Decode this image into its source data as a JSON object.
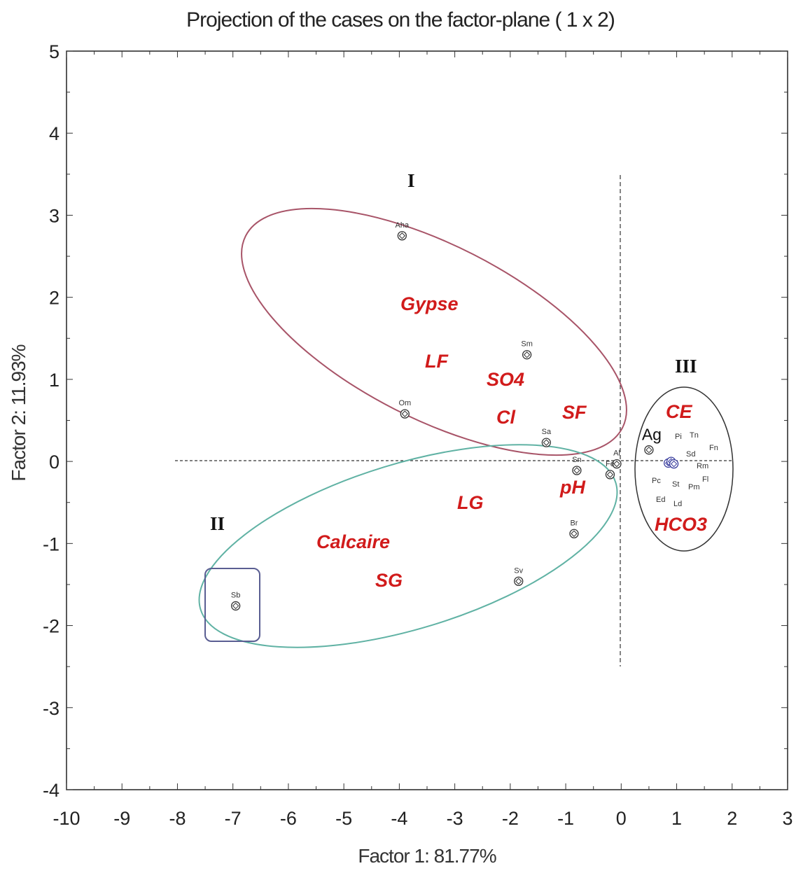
{
  "chart_data": {
    "type": "scatter",
    "title": "Projection of the cases on the factor-plane (  1 x   2)",
    "xlabel": "Factor 1: 81.77%",
    "ylabel": "Factor 2: 11.93%",
    "xlim": [
      -10,
      3
    ],
    "ylim": [
      -4,
      5
    ],
    "xticks": [
      "-10",
      "-9",
      "-8",
      "-7",
      "-6",
      "-5",
      "-4",
      "-3",
      "-2",
      "-1",
      "0",
      "1",
      "2",
      "3"
    ],
    "yticks": [
      "5",
      "4",
      "3",
      "2",
      "1",
      "0",
      "-1",
      "-2",
      "-3",
      "-4"
    ],
    "grid": false,
    "points": [
      {
        "label": "Aha",
        "x": -3.95,
        "y": 2.75
      },
      {
        "label": "Sm",
        "x": -1.7,
        "y": 1.3
      },
      {
        "label": "Om",
        "x": -3.9,
        "y": 0.58
      },
      {
        "label": "Sa",
        "x": -1.35,
        "y": 0.23
      },
      {
        "label": "Sn",
        "x": -0.8,
        "y": -0.11
      },
      {
        "label": "Al",
        "x": -0.08,
        "y": -0.03
      },
      {
        "label": "Fe",
        "x": -0.2,
        "y": -0.16
      },
      {
        "label": "Br",
        "x": -0.85,
        "y": -0.88
      },
      {
        "label": "Sv",
        "x": -1.85,
        "y": -1.46
      },
      {
        "label": "Sb",
        "x": -6.95,
        "y": -1.76
      },
      {
        "label": "Ag",
        "x": 0.5,
        "y": 0.14
      },
      {
        "label": "",
        "x": 0.85,
        "y": -0.02
      },
      {
        "label": "",
        "x": 0.9,
        "y": 0.0
      },
      {
        "label": "",
        "x": 0.95,
        "y": -0.03
      }
    ],
    "point_names": [
      "Pi",
      "Tn",
      "Fn",
      "Sd",
      "Rm",
      "Fl",
      "Pc",
      "St",
      "Pm",
      "Ed",
      "Ld"
    ],
    "variables": [
      "Gypse",
      "LF",
      "SO4",
      "Cl",
      "SF",
      "pH",
      "LG",
      "Calcaire",
      "SG",
      "CE",
      "HCO3"
    ],
    "groups": [
      "I",
      "II",
      "III"
    ]
  }
}
